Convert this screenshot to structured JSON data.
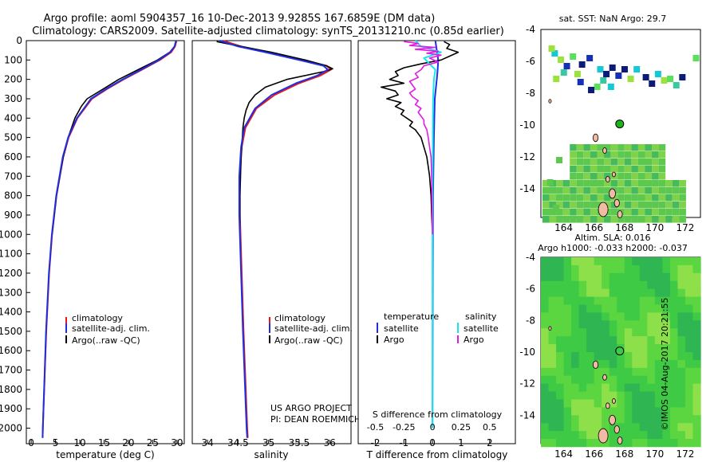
{
  "header": {
    "line1": "Argo profile: aoml 5904357_16 10-Dec-2013 9.9285S 167.6859E (DM data)",
    "line2": "Climatology: CARS2009. Satellite-adjusted climatology: synTS_20131210.nc (0.85d earlier)"
  },
  "colors": {
    "climatology": "#e8191d",
    "satellite": "#1f2fe0",
    "argo": "#000000",
    "sal_sat": "#18e6ef",
    "sal_argo": "#e21be3"
  },
  "chart_data": [
    {
      "type": "line",
      "name": "temperature-profile",
      "xlabel": "temperature (deg C)",
      "ylabel": "",
      "xlim": [
        -1,
        31.5
      ],
      "ylim": [
        2080,
        0
      ],
      "x_ticks": [
        0,
        5,
        10,
        15,
        20,
        25,
        30
      ],
      "y_ticks": [
        0,
        100,
        200,
        300,
        400,
        500,
        600,
        700,
        800,
        900,
        1000,
        1100,
        1200,
        1300,
        1400,
        1500,
        1600,
        1700,
        1800,
        1900,
        2000
      ],
      "y_tick_labels": [
        "0",
        "100",
        "200",
        "300",
        "400",
        "500",
        "600",
        "700",
        "800",
        "900",
        "1000",
        "1100",
        "1200",
        "1300",
        "1400",
        "1500",
        "1600",
        "1700",
        "1800",
        "1900",
        "2000"
      ],
      "legend": [
        "climatology",
        "satellite-adj. clim.",
        "Argo(..raw -QC)"
      ],
      "series": [
        {
          "name": "climatology",
          "depth": [
            0,
            30,
            60,
            100,
            150,
            200,
            250,
            300,
            400,
            500,
            600,
            800,
            1000,
            1200,
            1500,
            2000,
            2050
          ],
          "values": [
            29.9,
            29.6,
            28.8,
            26.5,
            22.8,
            19.0,
            15.6,
            12.5,
            9.5,
            7.7,
            6.6,
            5.2,
            4.3,
            3.7,
            3.1,
            2.4,
            2.35
          ]
        },
        {
          "name": "satellite-adj. clim.",
          "depth": [
            0,
            30,
            60,
            100,
            150,
            200,
            250,
            300,
            400,
            500,
            600,
            800,
            1000,
            1200,
            1500,
            2000,
            2050
          ],
          "values": [
            29.8,
            29.5,
            28.6,
            26.3,
            22.6,
            18.8,
            15.4,
            12.3,
            9.4,
            7.6,
            6.5,
            5.15,
            4.25,
            3.65,
            3.05,
            2.4,
            2.35
          ]
        },
        {
          "name": "Argo(..raw -QC)",
          "depth": [
            5,
            30,
            60,
            100,
            150,
            200,
            250,
            300,
            340,
            400,
            450,
            500,
            600,
            700,
            800,
            1000
          ],
          "values": [
            29.8,
            29.5,
            28.5,
            26.0,
            22.0,
            18.0,
            14.8,
            11.5,
            10.3,
            9.0,
            8.3,
            7.6,
            6.6,
            5.9,
            5.2,
            4.3
          ]
        }
      ]
    },
    {
      "type": "line",
      "name": "salinity-profile",
      "xlabel": "salinity",
      "xlim": [
        33.75,
        36.35
      ],
      "ylim": [
        2080,
        0
      ],
      "x_ticks": [
        34,
        34.5,
        35,
        35.5,
        36
      ],
      "x_tick_labels": [
        "34",
        "34.5",
        "35",
        "35.5",
        "36"
      ],
      "legend": [
        "climatology",
        "satellite-adj. clim.",
        "Argo(..raw -QC)"
      ],
      "series": [
        {
          "name": "climatology",
          "depth": [
            0,
            30,
            60,
            100,
            130,
            150,
            180,
            220,
            280,
            350,
            450,
            550,
            700,
            900,
            1200,
            1500,
            2000,
            2050
          ],
          "values": [
            34.25,
            34.55,
            35.0,
            35.55,
            35.95,
            36.02,
            35.85,
            35.5,
            35.1,
            34.8,
            34.62,
            34.56,
            34.53,
            34.53,
            34.56,
            34.59,
            34.65,
            34.66
          ]
        },
        {
          "name": "satellite-adj. clim.",
          "depth": [
            0,
            30,
            60,
            100,
            130,
            150,
            180,
            220,
            280,
            350,
            450,
            550,
            700,
            900,
            1200,
            1500,
            2000,
            2050
          ],
          "values": [
            34.2,
            34.5,
            34.95,
            35.5,
            35.9,
            35.97,
            35.8,
            35.45,
            35.05,
            34.78,
            34.6,
            34.55,
            34.52,
            34.52,
            34.55,
            34.58,
            34.64,
            34.65
          ]
        },
        {
          "name": "Argo(..raw -QC)",
          "depth": [
            5,
            30,
            60,
            100,
            130,
            145,
            160,
            200,
            240,
            280,
            320,
            360,
            400,
            450,
            500,
            550,
            600,
            700,
            800,
            900,
            1000
          ],
          "values": [
            34.15,
            34.55,
            35.05,
            35.6,
            35.95,
            36.05,
            35.9,
            35.3,
            34.95,
            34.78,
            34.68,
            34.63,
            34.6,
            34.58,
            34.57,
            34.56,
            34.55,
            34.54,
            34.53,
            34.53,
            34.53
          ]
        }
      ]
    },
    {
      "type": "line",
      "name": "difference-profile",
      "xlabel": "T difference from climatology",
      "xlabel_top": "S difference from climatology",
      "xlim": [
        -2.6,
        2.9
      ],
      "ylim": [
        2080,
        0
      ],
      "x_ticks": [
        -2,
        -1,
        0,
        1,
        2
      ],
      "x_tick_labels": [
        "-2",
        "-1",
        "0",
        "1",
        "2"
      ],
      "s_ticks_at_t": [
        -2,
        -1,
        0,
        1,
        2
      ],
      "s_tick_labels": [
        "-0.5",
        "-0.25",
        "0",
        "0.25",
        "0.5"
      ],
      "legend": {
        "temperature": "temperature",
        "salinity": "salinity",
        "satellite": "satellite",
        "argo": "Argo"
      },
      "series": [
        {
          "name": "temperature satellite",
          "depth": [
            0,
            50,
            100,
            150,
            200,
            300,
            500,
            800,
            1200,
            2000
          ],
          "values": [
            0.1,
            0.15,
            0.2,
            0.18,
            0.15,
            0.08,
            0.05,
            0.02,
            0.01,
            0.0
          ]
        },
        {
          "name": "temperature Argo",
          "depth": [
            5,
            20,
            40,
            60,
            80,
            100,
            120,
            140,
            160,
            180,
            200,
            220,
            240,
            260,
            280,
            300,
            320,
            340,
            360,
            380,
            400,
            420,
            440,
            460,
            480,
            500,
            550,
            600,
            650,
            700,
            800,
            900,
            1000
          ],
          "values": [
            0.4,
            0.6,
            0.5,
            0.9,
            0.6,
            0.3,
            -0.4,
            -1.0,
            -1.3,
            -1.2,
            -1.5,
            -1.0,
            -1.8,
            -1.3,
            -1.2,
            -1.6,
            -1.1,
            -1.3,
            -1.0,
            -1.1,
            -0.9,
            -0.7,
            -0.8,
            -0.6,
            -0.5,
            -0.4,
            -0.3,
            -0.2,
            -0.15,
            -0.1,
            -0.05,
            -0.03,
            0.0
          ]
        },
        {
          "name": "salinity satellite",
          "depth": [
            0,
            30,
            60,
            90,
            120,
            150,
            200,
            300,
            500,
            800,
            1200,
            2000
          ],
          "values": [
            -0.6,
            -0.4,
            0.3,
            -0.3,
            -0.1,
            0.1,
            0.05,
            0.02,
            0.01,
            0.0,
            0.0,
            0.0
          ]
        },
        {
          "name": "salinity Argo",
          "depth": [
            5,
            15,
            25,
            35,
            45,
            55,
            65,
            75,
            90,
            110,
            130,
            150,
            170,
            190,
            210,
            230,
            250,
            270,
            290,
            310,
            330,
            350,
            370,
            390,
            410,
            430,
            460,
            500,
            550,
            600,
            700,
            800,
            1000
          ],
          "values": [
            -1.0,
            -0.5,
            -0.8,
            0.1,
            -0.6,
            0.2,
            -0.2,
            0.3,
            -0.1,
            0.2,
            -0.3,
            -0.4,
            -0.6,
            -0.5,
            -0.8,
            -0.7,
            -0.6,
            -0.8,
            -0.7,
            -0.5,
            -0.6,
            -0.4,
            -0.5,
            -0.4,
            -0.3,
            -0.3,
            -0.2,
            -0.15,
            -0.1,
            -0.05,
            -0.03,
            -0.02,
            0.0
          ]
        }
      ]
    },
    {
      "type": "heatmap",
      "name": "sst-map",
      "title": "sat. SST: NaN Argo: 29.7",
      "xlim": [
        162.5,
        173.0
      ],
      "ylim": [
        -15.8,
        -4
      ],
      "x_ticks": [
        164,
        166,
        168,
        170,
        172
      ],
      "y_ticks": [
        -4,
        -6,
        -8,
        -10,
        -12,
        -14
      ],
      "argo_position": [
        167.6859,
        -9.9285
      ]
    },
    {
      "type": "heatmap",
      "name": "sla-map",
      "title": "Altim. SLA: 0.016",
      "subtitle": "Argo h1000: -0.033 h2000: -0.037",
      "xlim": [
        162.5,
        173.0
      ],
      "ylim": [
        -15.8,
        -4
      ],
      "x_ticks": [
        164,
        166,
        168,
        170,
        172
      ],
      "y_ticks": [
        -4,
        -6,
        -8,
        -10,
        -12,
        -14
      ],
      "argo_position": [
        167.6859,
        -9.9285
      ]
    }
  ],
  "annotations": {
    "project_line1": "US ARGO PROJECT",
    "project_line2": "PI: DEAN ROEMMICH",
    "vertical_stamp": "©IMOS 04-Aug-2017 20:21:55"
  }
}
